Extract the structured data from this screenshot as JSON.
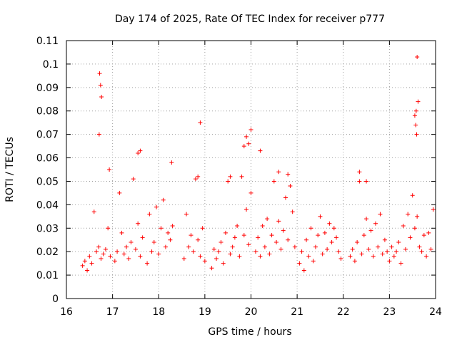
{
  "chart_data": {
    "type": "scatter",
    "title": "Day 174 of 2025, Rate Of TEC Index for receiver p777",
    "xlabel": "GPS time / hours",
    "ylabel": "ROTI / TECUs",
    "xlim": [
      16,
      24
    ],
    "ylim": [
      0,
      0.11
    ],
    "grid": true,
    "marker": "+",
    "color": "#ff0000",
    "x_ticks": [
      16,
      17,
      18,
      19,
      20,
      21,
      22,
      23,
      24
    ],
    "x_tick_labels": [
      "16",
      "17",
      "18",
      "19",
      "20",
      "21",
      "22",
      "23",
      "24"
    ],
    "y_ticks": [
      0,
      0.01,
      0.02,
      0.03,
      0.04,
      0.05,
      0.06,
      0.07,
      0.08,
      0.09,
      0.1,
      0.11
    ],
    "y_tick_labels": [
      "0",
      "0.01",
      "0.02",
      "0.03",
      "0.04",
      "0.05",
      "0.06",
      "0.07",
      "0.08",
      "0.09",
      "0.1",
      "0.11"
    ],
    "series": [
      {
        "name": "ROTI",
        "x": [
          16.35,
          16.4,
          16.45,
          16.5,
          16.55,
          16.6,
          16.65,
          16.7,
          16.75,
          16.8,
          16.85,
          16.9,
          16.95,
          17.05,
          17.1,
          17.15,
          17.2,
          17.25,
          17.3,
          17.35,
          17.4,
          17.45,
          17.5,
          17.55,
          17.6,
          17.65,
          17.75,
          17.8,
          17.85,
          17.9,
          17.95,
          18.0,
          18.05,
          18.1,
          18.15,
          18.2,
          18.25,
          18.3,
          18.55,
          18.6,
          18.65,
          18.7,
          18.75,
          18.8,
          18.85,
          18.9,
          18.95,
          19.0,
          19.15,
          19.2,
          19.25,
          19.3,
          19.35,
          19.4,
          19.45,
          19.5,
          19.55,
          19.6,
          19.65,
          19.7,
          19.75,
          19.8,
          19.85,
          19.9,
          19.95,
          20.0,
          20.1,
          20.15,
          20.2,
          20.25,
          20.3,
          20.35,
          20.4,
          20.45,
          20.5,
          20.55,
          20.6,
          20.65,
          20.7,
          20.75,
          20.8,
          20.85,
          20.9,
          20.95,
          21.05,
          21.1,
          21.15,
          21.2,
          21.25,
          21.3,
          21.35,
          21.4,
          21.45,
          21.5,
          21.55,
          21.6,
          21.65,
          21.7,
          21.75,
          21.8,
          21.85,
          21.9,
          21.95,
          22.15,
          22.2,
          22.25,
          22.3,
          22.35,
          22.4,
          22.45,
          22.5,
          22.55,
          22.6,
          22.65,
          22.7,
          22.75,
          22.8,
          22.85,
          22.9,
          22.95,
          23.0,
          23.05,
          23.1,
          23.15,
          23.2,
          23.25,
          23.3,
          23.35,
          23.4,
          23.45,
          23.5,
          23.55,
          23.6,
          23.65,
          23.7,
          23.75,
          23.8,
          23.85,
          23.9,
          23.95,
          16.72,
          16.74,
          16.76,
          16.71,
          16.93,
          17.55,
          17.6,
          18.28,
          18.85,
          18.9,
          19.55,
          19.85,
          19.9,
          19.95,
          20.0,
          20.2,
          20.6,
          20.8,
          22.35,
          22.5,
          23.55,
          23.58,
          23.6,
          23.62,
          23.57,
          23.59
        ],
        "y": [
          0.014,
          0.016,
          0.012,
          0.018,
          0.015,
          0.037,
          0.02,
          0.022,
          0.017,
          0.019,
          0.021,
          0.03,
          0.018,
          0.016,
          0.02,
          0.045,
          0.028,
          0.019,
          0.022,
          0.017,
          0.024,
          0.051,
          0.021,
          0.032,
          0.018,
          0.026,
          0.015,
          0.036,
          0.02,
          0.024,
          0.039,
          0.019,
          0.03,
          0.042,
          0.022,
          0.028,
          0.025,
          0.031,
          0.017,
          0.036,
          0.022,
          0.027,
          0.02,
          0.051,
          0.025,
          0.018,
          0.03,
          0.016,
          0.013,
          0.021,
          0.017,
          0.02,
          0.024,
          0.015,
          0.028,
          0.05,
          0.019,
          0.022,
          0.026,
          0.031,
          0.018,
          0.052,
          0.027,
          0.038,
          0.023,
          0.045,
          0.02,
          0.026,
          0.018,
          0.031,
          0.022,
          0.034,
          0.019,
          0.027,
          0.05,
          0.024,
          0.033,
          0.021,
          0.029,
          0.043,
          0.025,
          0.048,
          0.037,
          0.022,
          0.015,
          0.02,
          0.012,
          0.025,
          0.018,
          0.03,
          0.016,
          0.022,
          0.027,
          0.035,
          0.019,
          0.028,
          0.021,
          0.032,
          0.024,
          0.03,
          0.026,
          0.02,
          0.017,
          0.018,
          0.021,
          0.016,
          0.024,
          0.05,
          0.019,
          0.027,
          0.034,
          0.021,
          0.029,
          0.018,
          0.032,
          0.022,
          0.036,
          0.019,
          0.025,
          0.02,
          0.016,
          0.022,
          0.018,
          0.02,
          0.024,
          0.015,
          0.031,
          0.021,
          0.036,
          0.026,
          0.044,
          0.03,
          0.035,
          0.022,
          0.02,
          0.027,
          0.018,
          0.028,
          0.021,
          0.038,
          0.096,
          0.091,
          0.086,
          0.07,
          0.055,
          0.062,
          0.063,
          0.058,
          0.052,
          0.075,
          0.052,
          0.065,
          0.069,
          0.066,
          0.072,
          0.063,
          0.054,
          0.053,
          0.054,
          0.05,
          0.078,
          0.08,
          0.103,
          0.084,
          0.074,
          0.07
        ]
      }
    ]
  }
}
